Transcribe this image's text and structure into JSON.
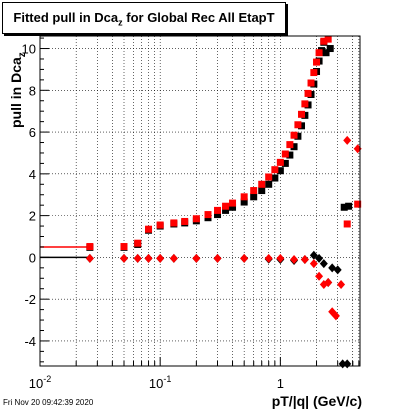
{
  "title": {
    "text": "Fitted pull in Dca",
    "sub": "z",
    "suffix": " for Global Rec All EtapT"
  },
  "ylabel": {
    "text": "pull in Dca",
    "sub": "z"
  },
  "xlabel": "pT/|q| (GeV/c)",
  "timestamp": "Fri Nov 20 09:42:39 2020",
  "colors": {
    "mean_black": "#000000",
    "mean_red": "#ff0000",
    "sigma_black": "#000000",
    "sigma_red": "#ff0000"
  },
  "chart_data": {
    "type": "scatter",
    "title": "Fitted pull in Dca_z for Global Rec All EtapT",
    "xlabel": "pT/|q| (GeV/c)",
    "ylabel": "pull in Dca_z",
    "xscale": "log",
    "xlim": [
      0.01,
      4.6
    ],
    "ylim": [
      -5.2,
      10.6
    ],
    "grid": true,
    "x_ticks": [
      "10^-2",
      "10^-1",
      "1"
    ],
    "y_ticks": [
      "-4",
      "-2",
      "0",
      "2",
      "4",
      "6",
      "8",
      "10"
    ],
    "series": [
      {
        "marker": "square",
        "color": "black",
        "points": [
          [
            0.026,
            0.48
          ],
          [
            0.05,
            0.48
          ],
          [
            0.065,
            0.62
          ],
          [
            0.08,
            1.3
          ],
          [
            0.1,
            1.5
          ],
          [
            0.13,
            1.6
          ],
          [
            0.16,
            1.65
          ],
          [
            0.2,
            1.75
          ],
          [
            0.25,
            1.9
          ],
          [
            0.3,
            2.05
          ],
          [
            0.35,
            2.25
          ],
          [
            0.4,
            2.4
          ],
          [
            0.5,
            2.65
          ],
          [
            0.6,
            2.9
          ],
          [
            0.7,
            3.2
          ],
          [
            0.8,
            3.5
          ],
          [
            0.9,
            3.8
          ],
          [
            1.0,
            4.15
          ],
          [
            1.1,
            4.5
          ],
          [
            1.2,
            4.9
          ],
          [
            1.3,
            5.3
          ],
          [
            1.4,
            5.8
          ],
          [
            1.5,
            6.3
          ],
          [
            1.6,
            6.8
          ],
          [
            1.7,
            7.3
          ],
          [
            1.8,
            7.8
          ],
          [
            1.9,
            8.3
          ],
          [
            2.0,
            8.9
          ],
          [
            2.1,
            9.4
          ],
          [
            2.2,
            9.9
          ],
          [
            2.3,
            10.3
          ],
          [
            2.4,
            9.8
          ],
          [
            2.6,
            10.0
          ],
          [
            3.4,
            2.4
          ],
          [
            3.7,
            2.45
          ]
        ]
      },
      {
        "marker": "square",
        "color": "red",
        "points": [
          [
            0.026,
            0.52
          ],
          [
            0.05,
            0.52
          ],
          [
            0.065,
            0.68
          ],
          [
            0.08,
            1.35
          ],
          [
            0.1,
            1.55
          ],
          [
            0.13,
            1.65
          ],
          [
            0.16,
            1.72
          ],
          [
            0.2,
            1.85
          ],
          [
            0.25,
            2.05
          ],
          [
            0.3,
            2.25
          ],
          [
            0.35,
            2.45
          ],
          [
            0.4,
            2.6
          ],
          [
            0.5,
            2.9
          ],
          [
            0.6,
            3.2
          ],
          [
            0.7,
            3.5
          ],
          [
            0.8,
            3.85
          ],
          [
            0.9,
            4.2
          ],
          [
            1.0,
            4.55
          ],
          [
            1.1,
            4.95
          ],
          [
            1.2,
            5.4
          ],
          [
            1.3,
            5.85
          ],
          [
            1.4,
            6.35
          ],
          [
            1.5,
            6.85
          ],
          [
            1.6,
            7.35
          ],
          [
            1.7,
            7.85
          ],
          [
            1.8,
            8.35
          ],
          [
            1.9,
            8.85
          ],
          [
            2.0,
            9.35
          ],
          [
            2.1,
            9.8
          ],
          [
            2.3,
            10.35
          ],
          [
            2.5,
            10.45
          ],
          [
            3.6,
            1.6
          ],
          [
            4.4,
            2.55
          ]
        ]
      },
      {
        "marker": "diamond",
        "color": "black",
        "points": [
          [
            0.026,
            -0.05
          ],
          [
            0.05,
            -0.05
          ],
          [
            0.065,
            -0.05
          ],
          [
            0.08,
            -0.05
          ],
          [
            0.1,
            -0.05
          ],
          [
            0.13,
            -0.05
          ],
          [
            0.2,
            -0.05
          ],
          [
            0.3,
            -0.05
          ],
          [
            0.5,
            -0.05
          ],
          [
            0.8,
            -0.08
          ],
          [
            1.0,
            -0.1
          ],
          [
            1.3,
            -0.15
          ],
          [
            1.6,
            -0.1
          ],
          [
            1.9,
            0.1
          ],
          [
            2.1,
            -0.05
          ],
          [
            2.3,
            -0.3
          ],
          [
            2.5,
            -1.2
          ],
          [
            2.7,
            -0.5
          ],
          [
            3.0,
            -0.6
          ],
          [
            3.3,
            -5.1
          ],
          [
            3.6,
            -5.1
          ]
        ]
      },
      {
        "marker": "diamond",
        "color": "red",
        "points": [
          [
            0.026,
            -0.05
          ],
          [
            0.05,
            -0.05
          ],
          [
            0.065,
            -0.05
          ],
          [
            0.08,
            -0.05
          ],
          [
            0.1,
            -0.05
          ],
          [
            0.13,
            -0.05
          ],
          [
            0.2,
            -0.05
          ],
          [
            0.3,
            -0.05
          ],
          [
            0.5,
            -0.05
          ],
          [
            0.8,
            -0.05
          ],
          [
            1.0,
            -0.05
          ],
          [
            1.3,
            -0.1
          ],
          [
            1.6,
            -0.1
          ],
          [
            1.9,
            -0.3
          ],
          [
            2.1,
            -0.9
          ],
          [
            2.3,
            -1.3
          ],
          [
            2.5,
            -1.2
          ],
          [
            2.7,
            -2.6
          ],
          [
            2.9,
            -2.8
          ],
          [
            3.2,
            -1.3
          ],
          [
            3.6,
            5.6
          ],
          [
            4.4,
            5.2
          ]
        ]
      }
    ],
    "fit_lines": [
      {
        "color": "red",
        "y": 0.5,
        "x_range": [
          0.01,
          0.026
        ]
      },
      {
        "color": "black",
        "y": 0.0,
        "x_range": [
          0.01,
          0.026
        ]
      }
    ]
  }
}
